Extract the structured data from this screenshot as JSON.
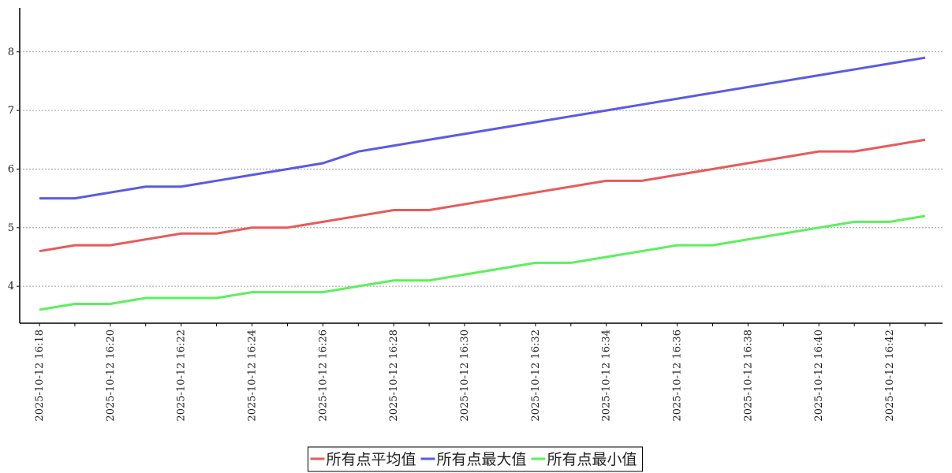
{
  "chart_data": {
    "type": "line",
    "categories": [
      "2025-10-12 16:18",
      null,
      "2025-10-12 16:20",
      null,
      "2025-10-12 16:22",
      null,
      "2025-10-12 16:24",
      null,
      "2025-10-12 16:26",
      null,
      "2025-10-12 16:28",
      null,
      "2025-10-12 16:30",
      null,
      "2025-10-12 16:32",
      null,
      "2025-10-12 16:34",
      null,
      "2025-10-12 16:36",
      null,
      "2025-10-12 16:38",
      null,
      "2025-10-12 16:40",
      null,
      "2025-10-12 16:42",
      null
    ],
    "series": [
      {
        "name": "所有点平均值",
        "color": "#e85a5a",
        "values": [
          4.6,
          4.7,
          4.7,
          4.8,
          4.9,
          4.9,
          5.0,
          5.0,
          5.1,
          5.2,
          5.3,
          5.3,
          5.4,
          5.5,
          5.6,
          5.7,
          5.8,
          5.8,
          5.9,
          6.0,
          6.1,
          6.2,
          6.3,
          6.3,
          6.4,
          6.5
        ]
      },
      {
        "name": "所有点最大值",
        "color": "#5a5ae6",
        "values": [
          5.5,
          5.5,
          5.6,
          5.7,
          5.7,
          5.8,
          5.9,
          6.0,
          6.1,
          6.3,
          6.4,
          6.5,
          6.6,
          6.7,
          6.8,
          6.9,
          7.0,
          7.1,
          7.2,
          7.3,
          7.4,
          7.5,
          7.6,
          7.7,
          7.8,
          7.9
        ]
      },
      {
        "name": "所有点最小值",
        "color": "#5cf05c",
        "values": [
          3.6,
          3.7,
          3.7,
          3.8,
          3.8,
          3.8,
          3.9,
          3.9,
          3.9,
          4.0,
          4.1,
          4.1,
          4.2,
          4.3,
          4.4,
          4.4,
          4.5,
          4.6,
          4.7,
          4.7,
          4.8,
          4.9,
          5.0,
          5.1,
          5.1,
          5.2
        ]
      }
    ],
    "ylim": [
      3.37,
      8.75
    ],
    "yticks": [
      4,
      5,
      6,
      7,
      8
    ],
    "grid": true,
    "legend": "bottom"
  }
}
